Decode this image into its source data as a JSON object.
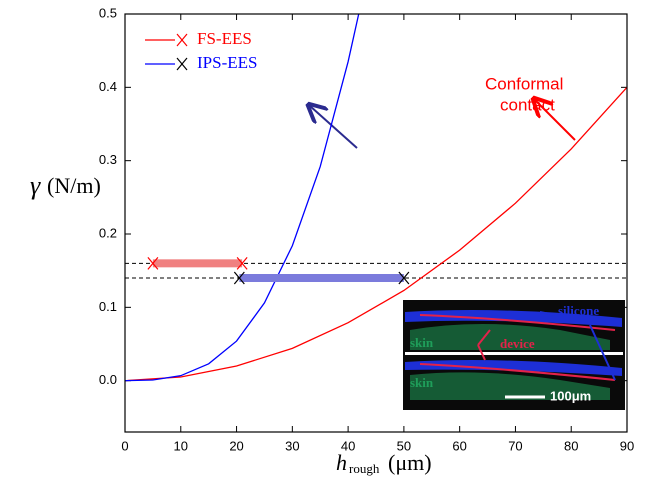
{
  "chart_data": {
    "type": "line",
    "y_label": "γ",
    "y_label_unit": "(N/m)",
    "x_label": "h",
    "x_label_subscript": "rough",
    "x_label_unit": "(μm)",
    "xlim": [
      0,
      90
    ],
    "xticks": [
      0,
      10,
      20,
      30,
      40,
      50,
      60,
      70,
      80,
      90
    ],
    "ylim": [
      -0.07,
      0.5
    ],
    "yticks": [
      {
        "value": 0,
        "label": "0.0"
      },
      0.1,
      0.2,
      0.3,
      0.4,
      0.5
    ],
    "legend": "upper left",
    "series": [
      {
        "name": "FS-EES",
        "color": "#ff0000",
        "marker_color": "#ff0000",
        "x": [
          0,
          10,
          20,
          30,
          40,
          50,
          60,
          70,
          80,
          90
        ],
        "values": [
          0,
          0.005,
          0.02,
          0.044,
          0.079,
          0.123,
          0.178,
          0.242,
          0.316,
          0.4
        ]
      },
      {
        "name": "IPS-EES",
        "color": "#0000ff",
        "marker_color": "#000000",
        "x": [
          0,
          5,
          10,
          15,
          20,
          25,
          30,
          35,
          40,
          41.9
        ],
        "values": [
          0,
          0.0009,
          0.0068,
          0.023,
          0.054,
          0.106,
          0.184,
          0.292,
          0.435,
          0.5
        ]
      }
    ],
    "hlines": [
      0.16,
      0.14
    ],
    "ranges": [
      {
        "y": 0.16,
        "x": [
          5,
          21
        ],
        "color": "#f08080",
        "marker_color": "#ff0000"
      },
      {
        "y": 0.14,
        "x": [
          20.5,
          50
        ],
        "color": "#7b7bdc",
        "marker_color": "#000000"
      }
    ],
    "annotation": [
      "Conformal",
      "contact"
    ],
    "inset_labels": {
      "top": "silicone",
      "middle": "device",
      "skin_top": "skin",
      "skin_bottom": "skin",
      "scale": "100μm"
    }
  }
}
